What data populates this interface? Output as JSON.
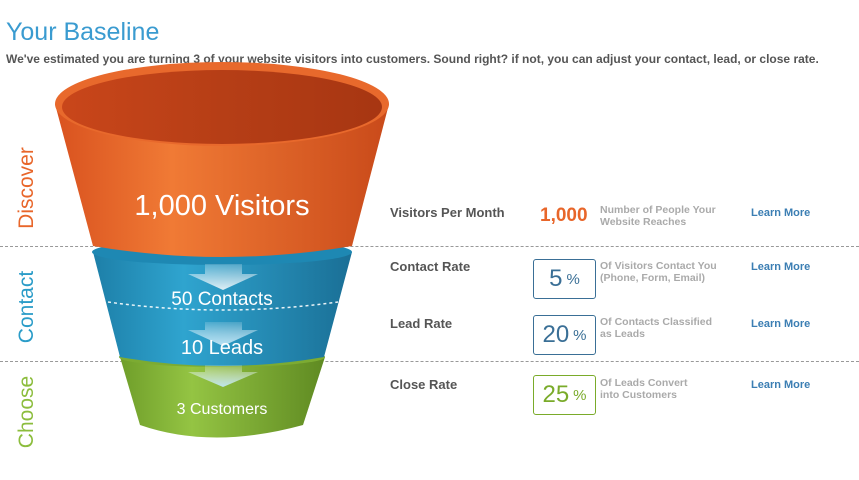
{
  "header": {
    "title": "Your Baseline",
    "subtitle": "We've estimated you are turning 3 of your website visitors into customers. Sound right? if not, you can adjust your contact, lead, or close rate."
  },
  "stages": {
    "discover": "Discover",
    "contact": "Contact",
    "choose": "Choose"
  },
  "funnel": {
    "visitors": "1,000 Visitors",
    "contacts": "50 Contacts",
    "leads": "10 Leads",
    "customers": "3 Customers"
  },
  "rows": {
    "visitors": {
      "label": "Visitors Per Month",
      "value": "1,000",
      "desc_line1": "Number of People Your",
      "desc_line2": "Website Reaches",
      "link": "Learn More"
    },
    "contact": {
      "label": "Contact Rate",
      "value": "5",
      "unit": "%",
      "desc_line1": "Of Visitors Contact You",
      "desc_line2": "(Phone, Form, Email)",
      "link": "Learn More"
    },
    "lead": {
      "label": "Lead Rate",
      "value": "20",
      "unit": "%",
      "desc_line1": "Of Contacts Classified",
      "desc_line2": "as Leads",
      "link": "Learn More"
    },
    "close": {
      "label": "Close Rate",
      "value": "25",
      "unit": "%",
      "desc_line1": "Of Leads Convert",
      "desc_line2": "into Customers",
      "link": "Learn More"
    }
  },
  "colors": {
    "title_blue": "#3a9bd0",
    "discover_orange": "#e8662a",
    "contact_blue": "#2a9cc8",
    "choose_green": "#8cbd3d",
    "rate_blue": "#3a6f96",
    "rate_green": "#7aab2a",
    "link_blue": "#3b7eb3"
  }
}
